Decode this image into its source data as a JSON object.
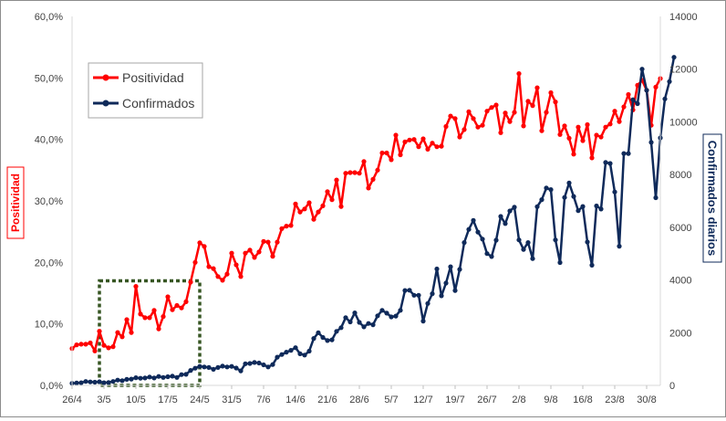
{
  "chart_data": {
    "type": "line",
    "dual_axis": true,
    "xlabel": "",
    "x_tick_labels": [
      "26/4",
      "3/5",
      "10/5",
      "17/5",
      "24/5",
      "31/5",
      "7/6",
      "14/6",
      "21/6",
      "28/6",
      "5/7",
      "12/7",
      "19/7",
      "26/7",
      "2/8",
      "9/8",
      "16/8",
      "23/8",
      "30/8"
    ],
    "y_left": {
      "label": "Positividad",
      "ticks": [
        "0,0%",
        "10,0%",
        "20,0%",
        "30,0%",
        "40,0%",
        "50,0%",
        "60,0%"
      ],
      "ylim": [
        0,
        60
      ],
      "color": "#ff0000"
    },
    "y_right": {
      "label": "Confirmados diarios",
      "ticks": [
        "0",
        "2000",
        "4000",
        "6000",
        "8000",
        "10000",
        "12000",
        "14000"
      ],
      "ylim": [
        0,
        14000
      ],
      "color": "#0f2a5a"
    },
    "grid": false,
    "legend_position": "top-left",
    "legend": [
      {
        "label": "Positividad",
        "color": "#ff0000",
        "marker": "circle"
      },
      {
        "label": "Confirmados",
        "color": "#0f2a5a",
        "marker": "circle"
      }
    ],
    "annotation": {
      "type": "dashed-rectangle",
      "color": "#375623",
      "x_range": [
        "2/5",
        "24/5"
      ],
      "y_range_left": [
        0,
        17
      ]
    },
    "series": [
      {
        "name": "Positividad",
        "axis": "left",
        "color": "#ff0000",
        "values": [
          6.0,
          6.6,
          6.7,
          6.7,
          6.9,
          5.6,
          8.8,
          6.5,
          6.1,
          6.3,
          8.6,
          7.9,
          10.7,
          8.6,
          16.1,
          11.6,
          11.0,
          11.0,
          12.2,
          9.2,
          11.2,
          14.4,
          12.3,
          13.0,
          12.6,
          13.6,
          16.8,
          20.0,
          23.2,
          22.6,
          19.3,
          19.0,
          17.7,
          17.1,
          18.1,
          21.5,
          19.6,
          17.7,
          21.5,
          22.0,
          20.8,
          21.7,
          23.4,
          23.3,
          21.0,
          23.3,
          25.5,
          25.9,
          26.0,
          29.5,
          28.2,
          28.7,
          29.7,
          27.0,
          28.2,
          29.2,
          31.5,
          30.2,
          33.4,
          29.1,
          34.5,
          34.6,
          34.6,
          34.5,
          36.4,
          32.1,
          33.5,
          35.0,
          37.8,
          37.8,
          36.7,
          40.7,
          37.5,
          39.6,
          39.9,
          40.0,
          38.8,
          40.1,
          38.4,
          39.4,
          38.8,
          38.9,
          42.1,
          43.8,
          43.4,
          40.4,
          41.6,
          44.5,
          43.4,
          42.0,
          42.3,
          44.6,
          45.2,
          45.6,
          41.1,
          44.3,
          42.9,
          44.4,
          50.7,
          42.2,
          46.2,
          45.5,
          48.4,
          41.4,
          44.4,
          47.6,
          46.1,
          40.8,
          42.2,
          40.2,
          37.6,
          42.0,
          39.8,
          42.4,
          37.0,
          40.7,
          40.4,
          42.0,
          42.5,
          44.6,
          42.9,
          45.3,
          47.3,
          44.8,
          48.8,
          49.6,
          48.0,
          42.3,
          48.5,
          49.9
        ]
      },
      {
        "name": "Confirmados",
        "axis": "right",
        "color": "#0f2a5a",
        "values": [
          80,
          90,
          100,
          150,
          130,
          120,
          140,
          100,
          110,
          150,
          200,
          180,
          230,
          240,
          290,
          270,
          280,
          320,
          280,
          340,
          300,
          330,
          350,
          300,
          410,
          420,
          570,
          650,
          720,
          700,
          680,
          610,
          680,
          730,
          700,
          720,
          660,
          550,
          820,
          830,
          870,
          850,
          780,
          700,
          790,
          1070,
          1170,
          1260,
          1330,
          1430,
          1200,
          1150,
          1300,
          1780,
          2000,
          1820,
          1700,
          1730,
          2050,
          2190,
          2570,
          2410,
          2750,
          2390,
          2220,
          2350,
          2300,
          2640,
          2850,
          2740,
          2600,
          2630,
          2850,
          3600,
          3610,
          3420,
          3420,
          2440,
          3110,
          3480,
          4420,
          3400,
          3880,
          4500,
          3600,
          4400,
          5420,
          5920,
          6260,
          5820,
          5550,
          5000,
          4890,
          5510,
          6410,
          6140,
          6620,
          6760,
          5520,
          5160,
          5420,
          4810,
          6780,
          7050,
          7490,
          7430,
          5520,
          4660,
          7130,
          7680,
          7170,
          6630,
          6790,
          5440,
          4560,
          6810,
          6690,
          8460,
          8420,
          7340,
          5280,
          8800,
          8800,
          10840,
          10690,
          12000,
          11200,
          9220,
          7120,
          9390,
          10870,
          11530,
          12450
        ]
      }
    ]
  }
}
